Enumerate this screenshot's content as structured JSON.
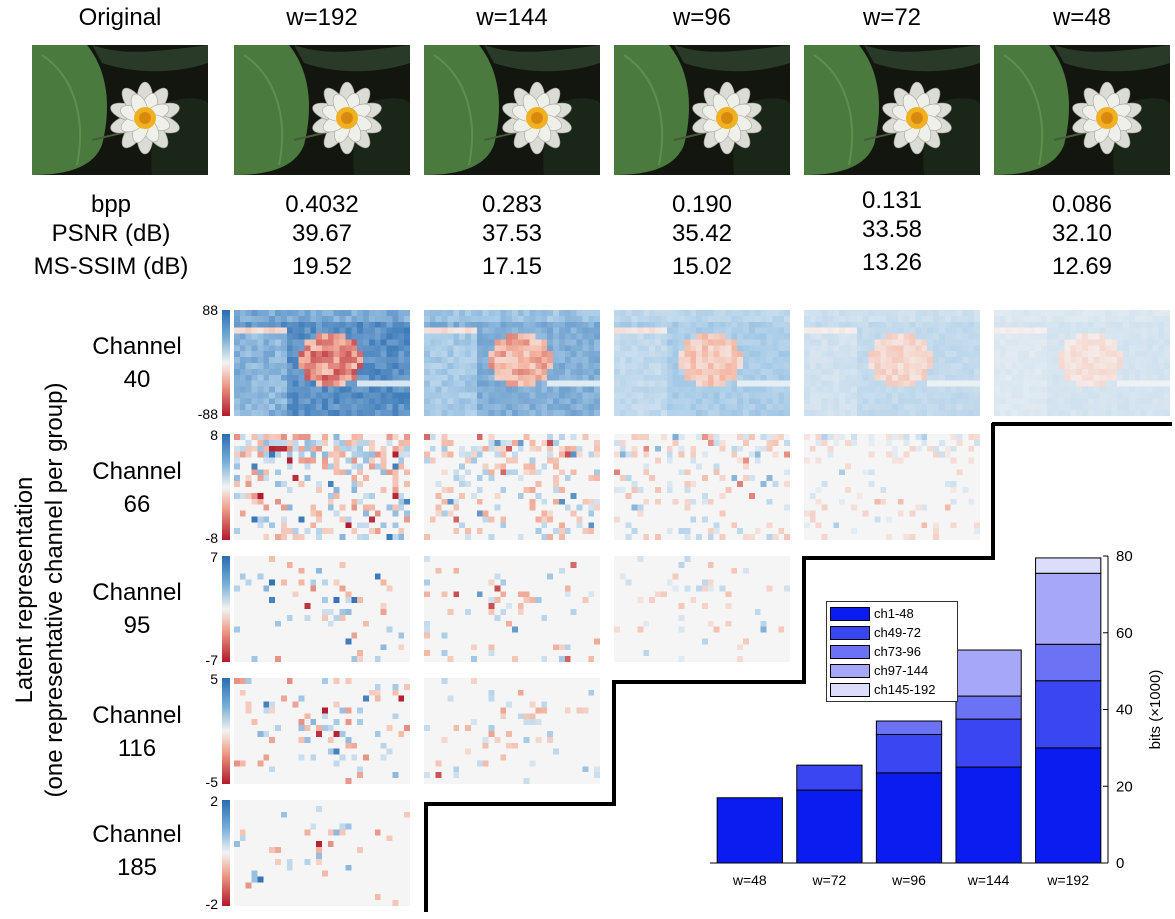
{
  "columns": [
    {
      "title": "Original"
    },
    {
      "title": "w=192",
      "bpp": "0.4032",
      "psnr": "39.67",
      "msssim": "19.52"
    },
    {
      "title": "w=144",
      "bpp": "0.283",
      "psnr": "37.53",
      "msssim": "17.15"
    },
    {
      "title": "w=96",
      "bpp": "0.190",
      "psnr": "35.42",
      "msssim": "15.02"
    },
    {
      "title": "w=72",
      "bpp": "0.131",
      "psnr": "33.58",
      "msssim": "13.26"
    },
    {
      "title": "w=48",
      "bpp": "0.086",
      "psnr": "32.10",
      "msssim": "12.69"
    }
  ],
  "metric_labels": {
    "bpp": "bpp",
    "psnr": "PSNR (dB)",
    "msssim": "MS-SSIM (dB)"
  },
  "latent_label": {
    "line1": "Latent representation",
    "line2": "(one representative channel per group)"
  },
  "channels": [
    {
      "label_word": "Channel",
      "number": "40",
      "max": "88",
      "min": "-88",
      "maps_shown": 5
    },
    {
      "label_word": "Channel",
      "number": "66",
      "max": "8",
      "min": "-8",
      "maps_shown": 4
    },
    {
      "label_word": "Channel",
      "number": "95",
      "max": "7",
      "min": "-7",
      "maps_shown": 3
    },
    {
      "label_word": "Channel",
      "number": "116",
      "max": "5",
      "min": "-5",
      "maps_shown": 2
    },
    {
      "label_word": "Channel",
      "number": "185",
      "max": "2",
      "min": "-2",
      "maps_shown": 1
    }
  ],
  "colors": {
    "ch1-48": "#0a1cf0",
    "ch49-72": "#3a46f2",
    "ch73-96": "#6b72f3",
    "ch97-144": "#a6a8f7",
    "ch145-192": "#dcdcfb",
    "positive": "#2b6cb0",
    "negative": "#b2182b"
  },
  "chart_data": {
    "type": "bar",
    "stacked": true,
    "categories": [
      "w=48",
      "w=72",
      "w=96",
      "w=144",
      "w=192"
    ],
    "series": [
      {
        "name": "ch1-48",
        "values": [
          17,
          19,
          23.5,
          25,
          30
        ]
      },
      {
        "name": "ch49-72",
        "values": [
          0,
          6.5,
          10,
          12.5,
          17.5
        ]
      },
      {
        "name": "ch73-96",
        "values": [
          0,
          0,
          3.5,
          6,
          9.5
        ]
      },
      {
        "name": "ch97-144",
        "values": [
          0,
          0,
          0,
          12,
          18.5
        ]
      },
      {
        "name": "ch145-192",
        "values": [
          0,
          0,
          0,
          0,
          4
        ]
      }
    ],
    "ylim": [
      0,
      80
    ],
    "yticks": [
      "0",
      "20",
      "40",
      "60",
      "80"
    ],
    "ylabel": "bits (×1000)",
    "legend_position": "upper-left"
  }
}
